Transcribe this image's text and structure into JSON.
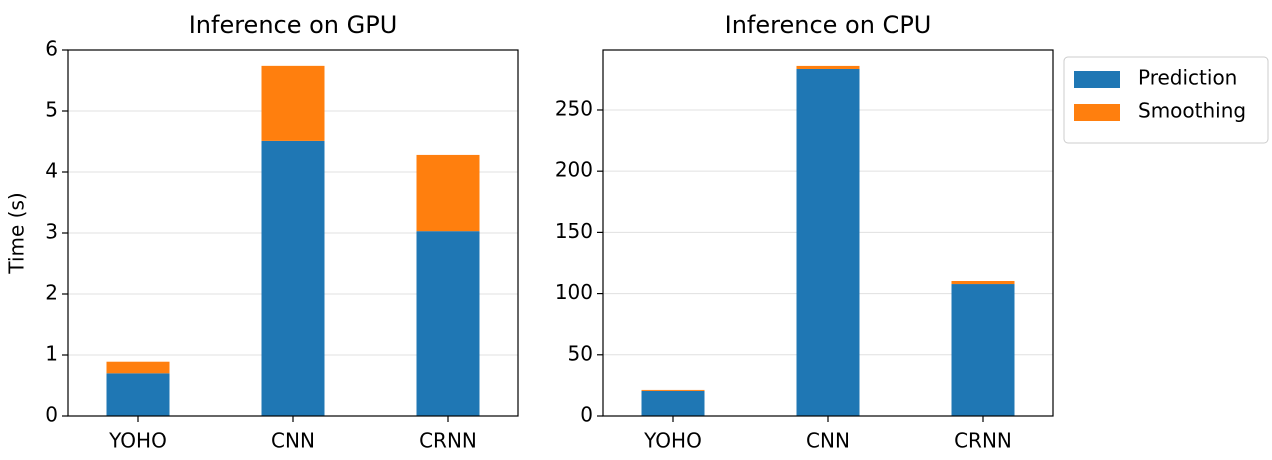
{
  "chart_data": [
    {
      "type": "stacked-bar",
      "title": "Inference on GPU",
      "y_label": "Time (s)",
      "categories": [
        "YOHO",
        "CNN",
        "CRNN"
      ],
      "series": [
        {
          "color": "#1f77b4",
          "values": [
            0.7,
            4.51,
            3.03
          ]
        },
        {
          "color": "#ff7f0e",
          "values": [
            0.19,
            1.23,
            1.25
          ]
        }
      ],
      "ylim": [
        0,
        6
      ],
      "yticks": [
        0,
        1,
        2,
        3,
        4,
        5,
        6
      ],
      "grid": true
    },
    {
      "type": "stacked-bar",
      "title": "Inference on CPU",
      "categories": [
        "YOHO",
        "CNN",
        "CRNN"
      ],
      "series": [
        {
          "name": "Prediction",
          "color": "#1f77b4",
          "values": [
            20.5,
            283.5,
            107.8
          ]
        },
        {
          "name": "Smoothing",
          "color": "#ff7f0e",
          "values": [
            0.8,
            2.5,
            2.5
          ]
        }
      ],
      "ylim": [
        0,
        299
      ],
      "yticks": [
        0,
        50,
        100,
        150,
        200,
        250
      ],
      "grid": true,
      "legend": "outside-right"
    }
  ]
}
